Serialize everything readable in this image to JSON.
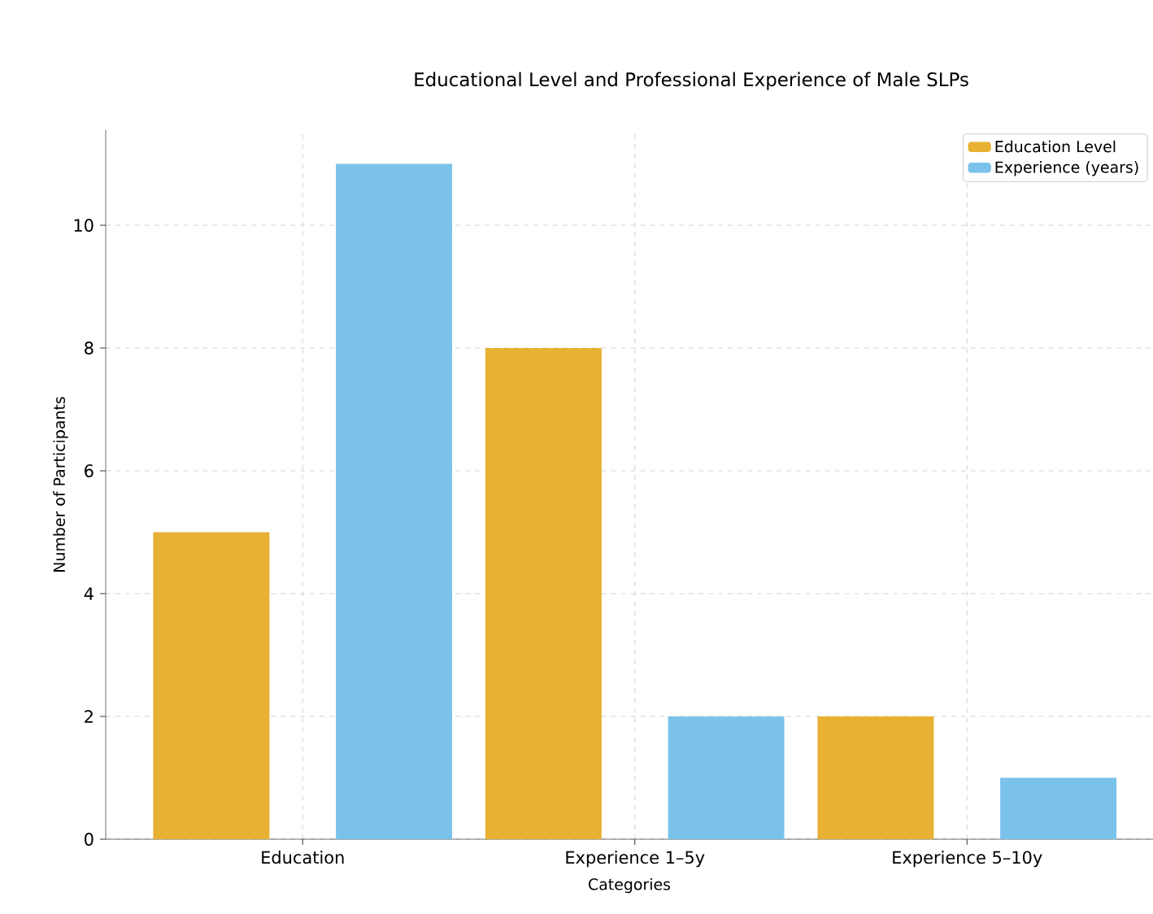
{
  "chart_data": {
    "type": "bar",
    "title": "Educational Level and Professional Experience of Male SLPs",
    "xlabel": "Categories",
    "ylabel": "Number of Participants",
    "categories": [
      "Education",
      "Experience 1–5y",
      "Experience 5–10y"
    ],
    "series": [
      {
        "name": "Education Level",
        "color": "#e8b134",
        "values": [
          5,
          8,
          2
        ]
      },
      {
        "name": "Experience (years)",
        "color": "#7bc2ea",
        "values": [
          11,
          2,
          1
        ]
      }
    ],
    "ylim": [
      0,
      11.55
    ],
    "yticks": [
      0,
      2,
      4,
      6,
      8,
      10
    ],
    "grid": true,
    "legend": "top right"
  }
}
